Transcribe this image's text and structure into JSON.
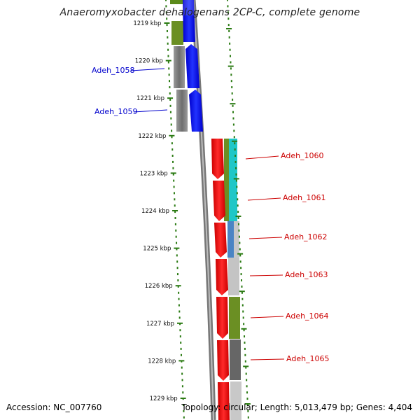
{
  "title": "Anaeromyxobacter dehalogenans 2CP-C, complete genome",
  "footer": {
    "accession_label": "Accession:",
    "accession": "NC_007760",
    "topology_label": "Topology:",
    "topology": "circular",
    "length_label": "Length:",
    "length": "5,013,479 bp",
    "genes_label": "Genes:",
    "genes": "4,404"
  },
  "colors": {
    "tick": "#2a7a12",
    "backbone": "#7f7f7f",
    "label_left": "#0000cc",
    "label_right": "#cc0000",
    "strand_blue": "#0000ee",
    "strand_red": "#ee0000"
  },
  "ticks": [
    {
      "label": "1219 kbp"
    },
    {
      "label": "1220 kbp"
    },
    {
      "label": "1221 kbp"
    },
    {
      "label": "1222 kbp"
    },
    {
      "label": "1223 kbp"
    },
    {
      "label": "1224 kbp"
    },
    {
      "label": "1225 kbp"
    },
    {
      "label": "1226 kbp"
    },
    {
      "label": "1227 kbp"
    },
    {
      "label": "1228 kbp"
    },
    {
      "label": "1229 kbp"
    }
  ],
  "genes": [
    {
      "name": "Adeh_1058",
      "strand": "minus"
    },
    {
      "name": "Adeh_1059",
      "strand": "minus"
    },
    {
      "name": "Adeh_1060",
      "strand": "plus"
    },
    {
      "name": "Adeh_1061",
      "strand": "plus"
    },
    {
      "name": "Adeh_1062",
      "strand": "plus"
    },
    {
      "name": "Adeh_1063",
      "strand": "plus"
    },
    {
      "name": "Adeh_1064",
      "strand": "plus"
    },
    {
      "name": "Adeh_1065",
      "strand": "plus"
    }
  ]
}
